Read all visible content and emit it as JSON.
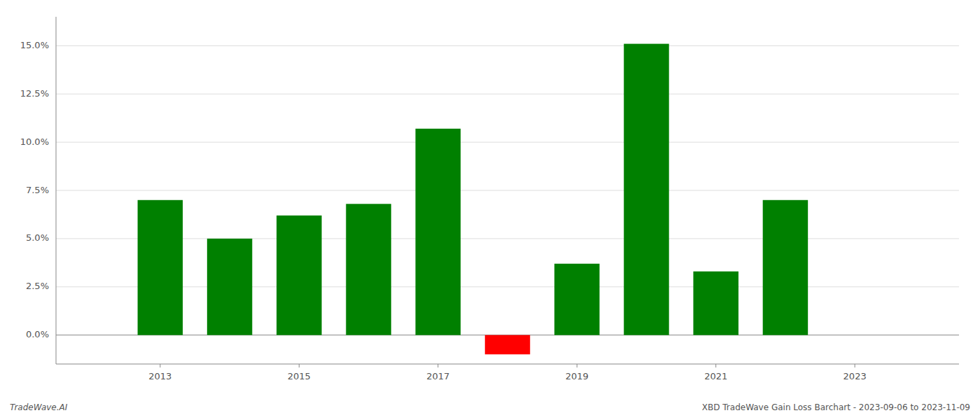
{
  "chart_data": {
    "type": "bar",
    "x": [
      2013,
      2014,
      2015,
      2016,
      2017,
      2018,
      2019,
      2020,
      2021,
      2022
    ],
    "values": [
      0.07,
      0.05,
      0.062,
      0.068,
      0.107,
      -0.01,
      0.037,
      0.151,
      0.033,
      0.07
    ],
    "colors": [
      "#008000",
      "#008000",
      "#008000",
      "#008000",
      "#008000",
      "#ff0000",
      "#008000",
      "#008000",
      "#008000",
      "#008000"
    ],
    "xlim": [
      2011.5,
      2024.5
    ],
    "xticks": [
      2013,
      2015,
      2017,
      2019,
      2021,
      2023
    ],
    "ylim": [
      -0.015,
      0.165
    ],
    "yticks": [
      {
        "value": 0.0,
        "label": "0.0%"
      },
      {
        "value": 0.025,
        "label": "2.5%"
      },
      {
        "value": 0.05,
        "label": "5.0%"
      },
      {
        "value": 0.075,
        "label": "7.5%"
      },
      {
        "value": 0.1,
        "label": "10.0%"
      },
      {
        "value": 0.125,
        "label": "12.5%"
      },
      {
        "value": 0.15,
        "label": "15.0%"
      }
    ],
    "grid": true,
    "annotations": [
      "TradeWave.AI",
      "XBD TradeWave Gain Loss Barchart - 2023-09-06 to 2023-11-09"
    ]
  }
}
